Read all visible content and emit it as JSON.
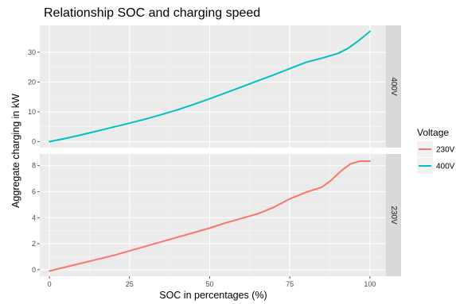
{
  "chart_data": {
    "type": "line",
    "title": "Relationship SOC and charging speed",
    "xlabel": "SOC in percentages (%)",
    "ylabel": "Aggregate charging in kW",
    "xlim": [
      -3,
      105
    ],
    "x_ticks": [
      0,
      25,
      50,
      75,
      100
    ],
    "grid": true,
    "legend": {
      "title": "Voltage",
      "placement": "right",
      "entries": [
        {
          "name": "230V",
          "color": "#F8766D"
        },
        {
          "name": "400V",
          "color": "#00BFC4"
        }
      ]
    },
    "panels": [
      {
        "strip": "400V",
        "ylim": [
          -2,
          39
        ],
        "y_ticks": [
          0,
          10,
          20,
          30
        ],
        "series": {
          "name": "400V",
          "color": "#00BFC4",
          "x": [
            0,
            5,
            10,
            15,
            20,
            25,
            30,
            35,
            40,
            45,
            50,
            55,
            60,
            65,
            70,
            75,
            80,
            85,
            90,
            93,
            96,
            98,
            100
          ],
          "y": [
            0,
            1.1,
            2.3,
            3.6,
            4.9,
            6.2,
            7.6,
            9.1,
            10.7,
            12.5,
            14.4,
            16.4,
            18.4,
            20.4,
            22.4,
            24.5,
            26.6,
            28.0,
            29.6,
            31.2,
            33.5,
            35.2,
            37.0
          ]
        }
      },
      {
        "strip": "230V",
        "ylim": [
          -0.5,
          8.9
        ],
        "y_ticks": [
          0,
          2,
          4,
          6,
          8
        ],
        "series": {
          "name": "230V",
          "color": "#F8766D",
          "x": [
            0,
            5,
            10,
            15,
            20,
            25,
            30,
            35,
            40,
            45,
            50,
            55,
            60,
            65,
            70,
            75,
            80,
            85,
            88,
            91,
            94,
            97,
            100
          ],
          "y": [
            -0.1,
            0.2,
            0.5,
            0.8,
            1.1,
            1.45,
            1.8,
            2.15,
            2.5,
            2.85,
            3.2,
            3.6,
            3.95,
            4.3,
            4.8,
            5.45,
            5.95,
            6.35,
            6.9,
            7.6,
            8.15,
            8.35,
            8.35
          ]
        }
      }
    ]
  }
}
